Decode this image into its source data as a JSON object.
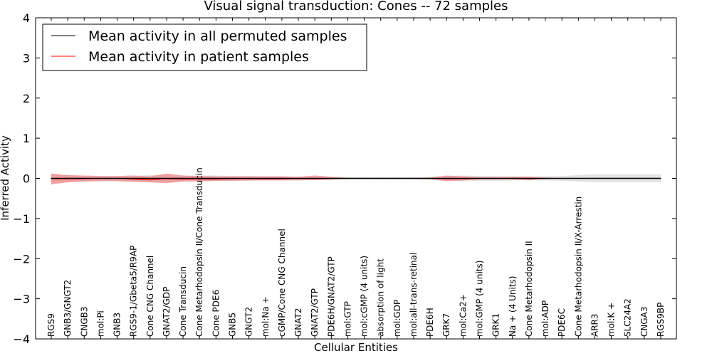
{
  "chart_data": {
    "type": "line",
    "title": "Visual signal transduction: Cones -- 72 samples",
    "xlabel": "Cellular Entities",
    "ylabel": "Inferred Activity",
    "ylim": [
      -4,
      4
    ],
    "yticks": [
      -4,
      -3,
      -2,
      -1,
      0,
      1,
      2,
      3,
      4
    ],
    "legend_position": "top-left",
    "categories": [
      "RGS9",
      "GNB3/GNGT2",
      "CNGB3",
      "mol:Pi",
      "GNB3",
      "RGS9-1/Gbeta5/R9AP",
      "Cone CNG Channel",
      "GNAT2/GDP",
      "Cone Transducin",
      "Cone Metarhodopsin II/Cone Transducin",
      "Cone PDE6",
      "GNB5",
      "GNGT2",
      "mol:Na +",
      "cGMP/Cone CNG Channel",
      "GNAT2",
      "GNAT2/GTP",
      "PDE6H/GNAT2/GTP",
      "mol:GTP",
      "mol:cGMP (4 units)",
      "absorption of light",
      "mol:GDP",
      "mol:all-trans-retinal",
      "PDE6H",
      "GRK7",
      "mol:Ca2+",
      "mol:GMP (4 units)",
      "GRK1",
      "Na + (4 Units)",
      "Cone Metarhodopsin II",
      "mol:ADP",
      "PDE6C",
      "Cone Metarhodopsin II/X-Arrestin",
      "ARR3",
      "mol:K +",
      "SLC24A2",
      "CNGA3",
      "RGS9BP"
    ],
    "series": [
      {
        "name": "Mean activity in all permuted samples",
        "color": "#000000",
        "values": [
          0,
          0,
          0,
          0,
          0,
          0,
          0,
          0,
          0,
          0,
          0,
          0,
          0,
          0,
          0,
          0,
          0,
          0,
          0,
          0,
          0,
          0,
          0,
          0,
          0,
          0,
          0,
          0,
          0,
          0,
          0,
          0,
          0,
          0,
          0,
          0,
          0,
          0
        ],
        "band_color": "#cccccc",
        "band_lower": [
          -0.1,
          -0.08,
          -0.06,
          -0.06,
          -0.05,
          -0.06,
          -0.08,
          -0.08,
          -0.06,
          -0.07,
          -0.07,
          -0.06,
          -0.06,
          -0.05,
          -0.05,
          -0.04,
          -0.04,
          -0.04,
          -0.03,
          -0.03,
          -0.03,
          -0.03,
          -0.03,
          -0.04,
          -0.06,
          -0.07,
          -0.06,
          -0.06,
          -0.05,
          -0.05,
          -0.05,
          -0.06,
          -0.08,
          -0.1,
          -0.1,
          -0.1,
          -0.1,
          -0.1
        ],
        "band_upper": [
          0.1,
          0.08,
          0.06,
          0.06,
          0.05,
          0.06,
          0.08,
          0.08,
          0.06,
          0.07,
          0.07,
          0.06,
          0.06,
          0.05,
          0.05,
          0.04,
          0.04,
          0.04,
          0.03,
          0.03,
          0.03,
          0.03,
          0.03,
          0.04,
          0.06,
          0.07,
          0.06,
          0.06,
          0.05,
          0.05,
          0.05,
          0.06,
          0.08,
          0.1,
          0.1,
          0.1,
          0.1,
          0.1
        ]
      },
      {
        "name": "Mean activity in patient samples",
        "color": "#ff0000",
        "values": [
          -0.01,
          -0.01,
          -0.01,
          0,
          0,
          -0.02,
          -0.04,
          -0.01,
          -0.02,
          -0.02,
          -0.02,
          -0.01,
          -0.01,
          -0.01,
          -0.01,
          0,
          -0.01,
          0,
          0,
          0,
          0,
          0,
          0,
          0,
          -0.01,
          -0.01,
          0,
          0,
          0,
          -0.01,
          0,
          0,
          0,
          0,
          0,
          0,
          0,
          0
        ],
        "band_color": "#f08080",
        "band_lower": [
          -0.15,
          -0.1,
          -0.08,
          -0.07,
          -0.07,
          -0.09,
          -0.1,
          -0.12,
          -0.08,
          -0.07,
          -0.06,
          -0.06,
          -0.05,
          -0.05,
          -0.05,
          -0.05,
          -0.04,
          -0.03,
          -0.01,
          -0.01,
          -0.01,
          -0.01,
          -0.01,
          -0.02,
          -0.07,
          -0.05,
          -0.03,
          -0.03,
          -0.03,
          -0.04,
          -0.02,
          -0.01,
          -0.01,
          -0.01,
          -0.01,
          -0.01,
          -0.01,
          -0.01
        ],
        "band_upper": [
          0.12,
          0.08,
          0.07,
          0.06,
          0.06,
          0.07,
          0.05,
          0.12,
          0.07,
          0.06,
          0.05,
          0.05,
          0.05,
          0.05,
          0.05,
          0.04,
          0.07,
          0.04,
          0.01,
          0.01,
          0.01,
          0.01,
          0.01,
          0.02,
          0.07,
          0.05,
          0.03,
          0.03,
          0.04,
          0.04,
          0.02,
          0.01,
          0.01,
          0.01,
          0.01,
          0.01,
          0.01,
          0.01
        ]
      }
    ]
  }
}
